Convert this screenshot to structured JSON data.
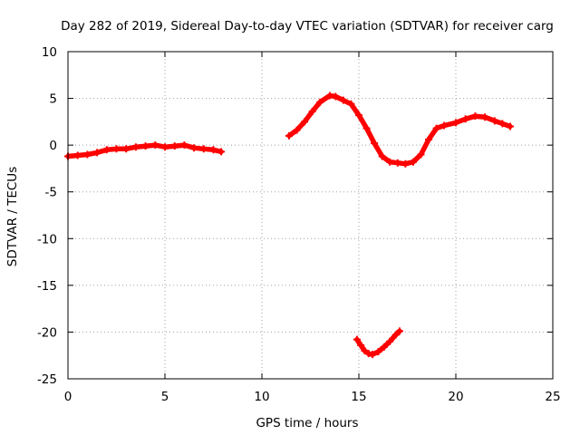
{
  "chart_data": {
    "type": "scatter",
    "title": "Day 282 of 2019, Sidereal Day-to-day VTEC variation (SDTVAR) for receiver carg",
    "xlabel": "GPS time / hours",
    "ylabel": "SDTVAR / TECUs",
    "xlim": [
      0,
      25
    ],
    "ylim": [
      -25,
      10
    ],
    "xticks": [
      0,
      5,
      10,
      15,
      20,
      25
    ],
    "yticks": [
      10,
      5,
      0,
      -5,
      -10,
      -15,
      -20,
      -25
    ],
    "x_tick_labels": [
      "0",
      "5",
      "10",
      "15",
      "20",
      "25"
    ],
    "y_tick_labels": [
      "10",
      "5",
      "0",
      "-5",
      "-10",
      "-15",
      "-20",
      "-25"
    ],
    "grid": true,
    "legend": false,
    "series_color": "#ff0000",
    "series": [
      {
        "name": "segment-1",
        "x": [
          0.0,
          0.5,
          1.0,
          1.5,
          2.0,
          2.5,
          3.0,
          3.5,
          4.0,
          4.5,
          5.0,
          5.5,
          6.0,
          6.5,
          7.0,
          7.5,
          7.9
        ],
        "y": [
          -1.2,
          -1.1,
          -1.0,
          -0.8,
          -0.5,
          -0.4,
          -0.4,
          -0.2,
          -0.1,
          0.0,
          -0.2,
          -0.1,
          0.0,
          -0.3,
          -0.4,
          -0.5,
          -0.7
        ]
      },
      {
        "name": "segment-2",
        "x": [
          11.4,
          11.8,
          12.2,
          12.6,
          13.0,
          13.5,
          13.8,
          14.2,
          14.6,
          15.0,
          15.4,
          15.8,
          16.2,
          16.6,
          17.0,
          17.4,
          17.8,
          18.2,
          18.6,
          19.0,
          19.4,
          20.0,
          20.5,
          21.0,
          21.5,
          22.0,
          22.4,
          22.8
        ],
        "y": [
          1.0,
          1.6,
          2.5,
          3.6,
          4.6,
          5.3,
          5.2,
          4.8,
          4.4,
          3.2,
          1.8,
          0.2,
          -1.2,
          -1.8,
          -1.9,
          -2.0,
          -1.8,
          -1.0,
          0.6,
          1.8,
          2.1,
          2.4,
          2.8,
          3.1,
          3.0,
          2.6,
          2.3,
          2.0
        ]
      },
      {
        "name": "segment-3",
        "x": [
          14.9,
          15.1,
          15.3,
          15.5,
          15.7,
          16.0,
          16.3,
          16.6,
          16.9,
          17.1
        ],
        "y": [
          -20.8,
          -21.4,
          -22.0,
          -22.3,
          -22.4,
          -22.1,
          -21.6,
          -21.0,
          -20.3,
          -19.9
        ]
      }
    ]
  }
}
